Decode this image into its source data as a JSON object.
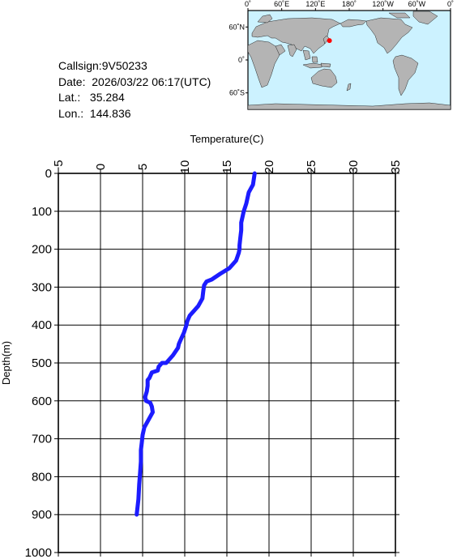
{
  "info": {
    "callsign_label": "Callsign:",
    "callsign": "9V50233",
    "date_label": "Date:",
    "date": "2026/03/22 06:17(UTC)",
    "lat_label": "Lat.:",
    "lat": "35.284",
    "lon_label": "Lon.:",
    "lon": "144.836"
  },
  "map": {
    "lon_ticks": [
      "0˚",
      "60˚E",
      "120˚E",
      "180˚",
      "120˚W",
      "60˚W",
      "0˚"
    ],
    "lat_ticks": [
      "60˚N",
      "0˚",
      "60˚S"
    ],
    "ocean_color": "#ccf2ff",
    "land_color": "#b4b4b4",
    "marker_color": "#ff0000",
    "marker_lon": 144.836,
    "marker_lat": 35.284
  },
  "chart_data": {
    "type": "line",
    "xlabel": "Temperature(C)",
    "ylabel": "Depth(m)",
    "xlim": [
      -5,
      35
    ],
    "ylim": [
      0,
      1000
    ],
    "x_ticks": [
      -5,
      0,
      5,
      10,
      15,
      20,
      25,
      30,
      35
    ],
    "y_ticks": [
      0,
      100,
      200,
      300,
      400,
      500,
      600,
      700,
      800,
      900,
      1000
    ],
    "grid": true,
    "line_color": "#1c1cff",
    "series": [
      {
        "x": [
          18.3,
          18.1,
          17.6,
          17.3,
          17.0,
          16.7,
          16.7,
          16.6,
          16.5,
          16.5,
          16.4,
          16.1,
          15.3,
          14.2,
          13.2,
          12.6,
          12.3,
          12.2,
          12.1,
          11.6,
          11.0,
          10.6,
          10.3,
          10.2,
          9.9,
          9.5,
          9.3,
          9.2,
          8.6,
          7.8,
          7.3,
          6.9,
          6.8,
          6.1,
          5.8,
          5.6,
          5.6,
          5.5,
          5.3,
          5.4,
          5.9,
          6.1,
          6.2,
          5.7,
          5.2,
          5.0,
          4.9,
          4.8,
          4.8,
          4.7,
          4.6,
          4.5,
          4.3
        ],
        "y": [
          0,
          30,
          50,
          80,
          100,
          130,
          150,
          170,
          190,
          200,
          210,
          230,
          250,
          265,
          280,
          285,
          295,
          310,
          330,
          350,
          365,
          375,
          390,
          400,
          420,
          440,
          450,
          460,
          480,
          500,
          500,
          510,
          520,
          525,
          540,
          545,
          560,
          575,
          590,
          600,
          605,
          615,
          630,
          650,
          670,
          690,
          710,
          730,
          760,
          790,
          820,
          860,
          900
        ]
      }
    ]
  }
}
